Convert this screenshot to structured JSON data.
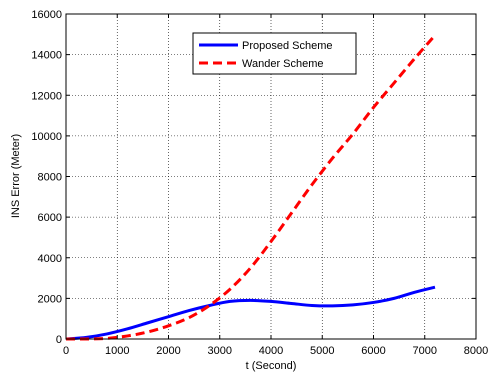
{
  "chart_data": {
    "type": "line",
    "title": "",
    "xlabel": "t (Second)",
    "ylabel": "INS Error (Meter)",
    "xlim": [
      0,
      8000
    ],
    "ylim": [
      0,
      16000
    ],
    "xticks": [
      0,
      1000,
      2000,
      3000,
      4000,
      5000,
      6000,
      7000,
      8000
    ],
    "yticks": [
      0,
      2000,
      4000,
      6000,
      8000,
      10000,
      12000,
      14000,
      16000
    ],
    "grid": true,
    "legend_position": "top-center",
    "series": [
      {
        "name": "Proposed Scheme",
        "color": "#0000ff",
        "style": "solid",
        "x": [
          0,
          400,
          800,
          1200,
          1600,
          2000,
          2400,
          2800,
          3200,
          3600,
          4000,
          4400,
          4800,
          5200,
          5600,
          6000,
          6400,
          6800,
          7200
        ],
        "y": [
          0,
          80,
          250,
          500,
          800,
          1100,
          1400,
          1650,
          1850,
          1900,
          1850,
          1750,
          1650,
          1630,
          1680,
          1800,
          2000,
          2300,
          2550
        ]
      },
      {
        "name": "Wander Scheme",
        "color": "#ff0000",
        "style": "dashed",
        "x": [
          0,
          400,
          800,
          1200,
          1600,
          2000,
          2400,
          2800,
          3200,
          3600,
          4000,
          4400,
          4800,
          5200,
          5600,
          6000,
          6400,
          6800,
          7200
        ],
        "y": [
          0,
          0,
          30,
          150,
          350,
          650,
          1050,
          1650,
          2450,
          3500,
          4800,
          6200,
          7600,
          8900,
          10100,
          11400,
          12600,
          13800,
          14950
        ]
      }
    ]
  }
}
